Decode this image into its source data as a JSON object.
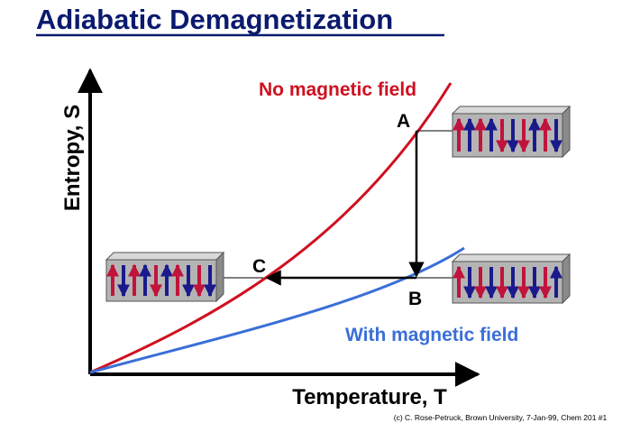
{
  "title": "Adiabatic Demagnetization",
  "axes": {
    "y": "Entropy, S",
    "x": "Temperature, T"
  },
  "curves": [
    {
      "label": "No magnetic field"
    },
    {
      "label": "With magnetic field"
    }
  ],
  "points": [
    "A",
    "B",
    "C"
  ],
  "footer": "(c) C. Rose-Petruck, Brown University, 7-Jan-99, Chem 201 #1"
}
